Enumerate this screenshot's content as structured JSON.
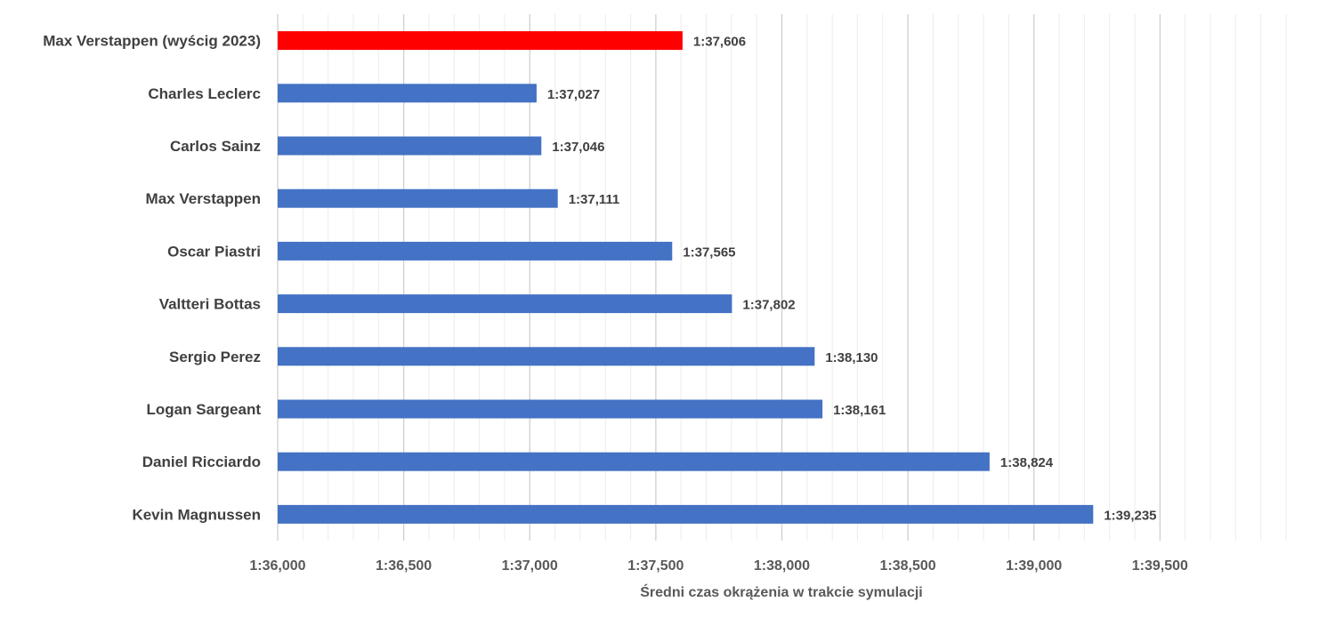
{
  "chart_data": {
    "type": "bar",
    "orientation": "horizontal",
    "categories": [
      "Max Verstappen (wyścig 2023)",
      "Charles Leclerc",
      "Carlos Sainz",
      "Max Verstappen",
      "Oscar Piastri",
      "Valtteri Bottas",
      "Sergio Perez",
      "Logan Sargeant",
      "Daniel Ricciardo",
      "Kevin Magnussen"
    ],
    "values": [
      97.606,
      97.027,
      97.046,
      97.111,
      97.565,
      97.802,
      98.13,
      98.161,
      98.824,
      99.235
    ],
    "value_labels": [
      "1:37,606",
      "1:37,027",
      "1:37,046",
      "1:37,111",
      "1:37,565",
      "1:37,802",
      "1:38,130",
      "1:38,161",
      "1:38,824",
      "1:39,235"
    ],
    "bar_colors": [
      "#ff0000",
      "#4472c4",
      "#4472c4",
      "#4472c4",
      "#4472c4",
      "#4472c4",
      "#4472c4",
      "#4472c4",
      "#4472c4",
      "#4472c4"
    ],
    "xlim": [
      96.0,
      100.0
    ],
    "x_ticks": [
      96.0,
      96.5,
      97.0,
      97.5,
      98.0,
      98.5,
      99.0,
      99.5
    ],
    "x_tick_labels": [
      "1:36,000",
      "1:36,500",
      "1:37,000",
      "1:37,500",
      "1:38,000",
      "1:38,500",
      "1:39,000",
      "1:39,500"
    ],
    "x_minor_step": 0.1,
    "xlabel": "Średni czas okrążenia w trakcie symulacji",
    "ylabel": "",
    "title": "",
    "grid": true,
    "legend": "none"
  }
}
